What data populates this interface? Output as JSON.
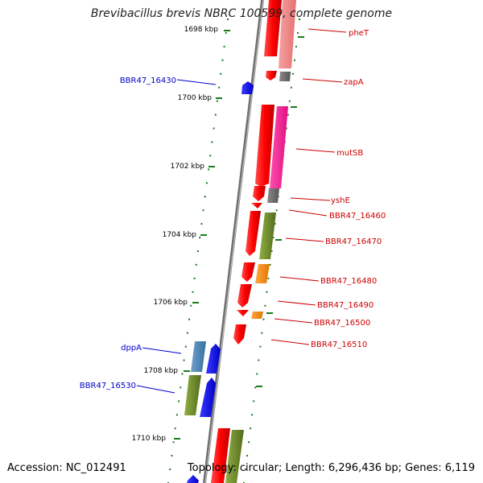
{
  "title": "Brevibacillus brevis NBRC 100599, complete genome",
  "footer": {
    "accession": "Accession: NC_012491",
    "summary": "Topology: circular; Length: 6,296,436 bp; Genes: 6,119"
  },
  "ticks": [
    {
      "label": "1698 kbp"
    },
    {
      "label": "1700 kbp"
    },
    {
      "label": "1702 kbp"
    },
    {
      "label": "1704 kbp"
    },
    {
      "label": "1706 kbp"
    },
    {
      "label": "1708 kbp"
    },
    {
      "label": "1710 kbp"
    }
  ],
  "right_labels": [
    {
      "name": "pheT"
    },
    {
      "name": "zapA"
    },
    {
      "name": "mutSB"
    },
    {
      "name": "yshE"
    },
    {
      "name": "BBR47_16460"
    },
    {
      "name": "BBR47_16470"
    },
    {
      "name": "BBR47_16480"
    },
    {
      "name": "BBR47_16490"
    },
    {
      "name": "BBR47_16500"
    },
    {
      "name": "BBR47_16510"
    }
  ],
  "left_labels": [
    {
      "name": "BBR47_16430"
    },
    {
      "name": "dppA"
    },
    {
      "name": "BBR47_16530"
    }
  ],
  "colors": {
    "forward_strand": "#ff0000",
    "reverse_strand": "#0000ff",
    "backbone": "#808080",
    "tick": "#1a7a1a",
    "label_right": "#cc0000",
    "label_left": "#0000cc",
    "pink": "#ff1493",
    "salmon": "#f08080",
    "olive": "#6b8e23",
    "orange": "#ff8c00",
    "grey": "#707070",
    "steelblue": "#4682b4"
  }
}
